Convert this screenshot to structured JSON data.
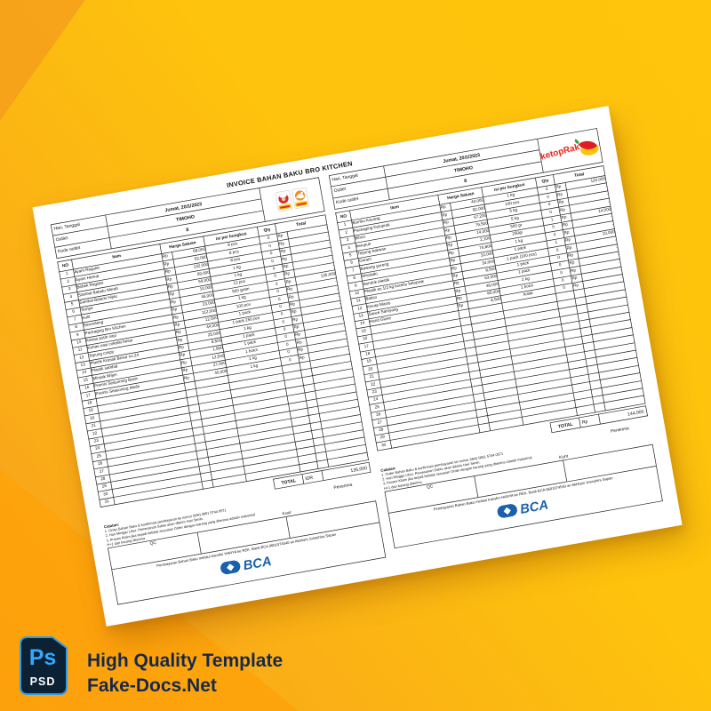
{
  "background": {
    "base_top": "#FEC30D",
    "base_bottom_left": "#F59A1E",
    "accent_wedge": "#FFA205"
  },
  "invoice": {
    "title": "INVOICE BAHAN BAKU BRO KITCHEN",
    "info_labels": [
      "Hari, Tanggal",
      "Outlet",
      "Kode outlet"
    ],
    "columns": {
      "no": "NO",
      "item": "Item",
      "price": "Harga Satuan",
      "pack": "isi per bungkus",
      "qty": "Qty",
      "total": "Total"
    },
    "currency": "Rp",
    "left": {
      "date": "Jumat, 20/1/2023",
      "outlet": "TIMOHO",
      "kode": "8",
      "row_count": 31,
      "total_label": "TOTAL",
      "total_currency": "IDR",
      "total_value": "135,000",
      "rows": [
        {
          "item": "Ayam Reguler",
          "price": "68,000",
          "pack": "8 pcs",
          "qty": "0",
          "total": "-"
        },
        {
          "item": "Ayam Hemat",
          "price": "52,000",
          "pack": "8 pcs",
          "qty": "0",
          "total": "-"
        },
        {
          "item": "Bebek Reguler",
          "price": "132,000",
          "pack": "8 pcs",
          "qty": "0",
          "total": "-"
        },
        {
          "item": "Sambal Balado Merah",
          "price": "59,000",
          "pack": "1 kg",
          "qty": "0",
          "total": "-"
        },
        {
          "item": "Sambal Balado Hijau",
          "price": "59,000",
          "pack": "1 kg",
          "qty": "0",
          "total": "-"
        },
        {
          "item": "Tempe",
          "price": "10,000",
          "pack": "12 pcs",
          "qty": "0",
          "total": "-"
        },
        {
          "item": "Kulit",
          "price": "45,000",
          "pack": "500 gram",
          "qty": "3",
          "total": "135,000"
        },
        {
          "item": "Serundeng",
          "price": "23,000",
          "pack": "1 kg",
          "qty": "0",
          "total": "-"
        },
        {
          "item": "Packaging Bro Kitchen",
          "price": "112,000",
          "pack": "100 pcs",
          "qty": "0",
          "total": "-"
        },
        {
          "item": "Kertas putih nasi",
          "price": "12,500",
          "pack": "1 pack",
          "qty": "0",
          "total": "-"
        },
        {
          "item": "Kertas nasi cokelat besar",
          "price": "44,000",
          "pack": "1 pack 250 pcs",
          "qty": "0",
          "total": "-"
        },
        {
          "item": "Tepung crispy",
          "price": "25,000",
          "pack": "1 kg",
          "qty": "0",
          "total": "-"
        },
        {
          "item": "Plastik Kresek Besar no.24",
          "price": "8,500",
          "pack": "1 pack",
          "qty": "0",
          "total": "-"
        },
        {
          "item": "Plastik sambal",
          "price": "1,800",
          "pack": "1 pack",
          "qty": "0",
          "total": "-"
        },
        {
          "item": "Minyak Wijen",
          "price": "12,500",
          "pack": "1 botol",
          "qty": "0",
          "total": "-"
        },
        {
          "item": "Premix Seasoning Basic",
          "price": "27,000",
          "pack": "1 kg",
          "qty": "0",
          "total": "-"
        },
        {
          "item": "Premix Seasoning Mede",
          "price": "40,000",
          "pack": "1 kg",
          "qty": "0",
          "total": "-"
        }
      ]
    },
    "right": {
      "date": "Jumat, 20/1/2023",
      "outlet": "TIMOHO",
      "kode": "8",
      "row_count": 30,
      "total_label": "TOTAL",
      "total_currency": "Rp",
      "total_value": "144,000",
      "rows": [
        {
          "item": "Bumbu Kacang",
          "price": "40,000",
          "pack": "1 kg",
          "qty": "3",
          "total": "120,000"
        },
        {
          "item": "Packaging Ketoprak",
          "price": "92,000",
          "pack": "100 pcs",
          "qty": "0",
          "total": "-"
        },
        {
          "item": "Bihun",
          "price": "67,200",
          "pack": "5 kg",
          "qty": "0",
          "total": "-"
        },
        {
          "item": "kerupuk",
          "price": "79,500",
          "pack": "5 kg",
          "qty": "0",
          "total": "-"
        },
        {
          "item": "Tepung bakwan",
          "price": "14,000",
          "pack": "500 gr",
          "qty": "1",
          "total": "14,000"
        },
        {
          "item": "Garam",
          "price": "2,100",
          "pack": "250gr",
          "qty": "0",
          "total": "-"
        },
        {
          "item": "Bawang goreng",
          "price": "76,800",
          "pack": "1 kg",
          "qty": "0",
          "total": "-"
        },
        {
          "item": "Shirataki",
          "price": "10,000",
          "pack": "1 pack",
          "qty": "1",
          "total": "10,000"
        },
        {
          "item": "Sendok plastik",
          "price": "34,000",
          "pack": "1 pack (100 pcs)",
          "qty": "0",
          "total": "-"
        },
        {
          "item": "Plastik es 1/2 kg bumbu ketoprak",
          "price": "8,500",
          "pack": "1 pack",
          "qty": "0",
          "total": "-"
        },
        {
          "item": "Bakso",
          "price": "63,000",
          "pack": "1 pack",
          "qty": "0",
          "total": "-"
        },
        {
          "item": "Kecap Manis",
          "price": "48,000",
          "pack": "2 kg",
          "qty": "0",
          "total": "-"
        },
        {
          "item": "Sauce Samyang",
          "price": "85,000",
          "pack": "1 botol",
          "qty": "0",
          "total": "-"
        },
        {
          "item": "Hand Glove",
          "price": "8,500",
          "pack": "kotak",
          "qty": "0",
          "total": "-"
        }
      ]
    },
    "notes": {
      "heading": "Catatan:",
      "lines": [
        "1. Order Bahan Baku & konfirmasi pembayaran ke nomor (WA) 0851 5744 0571",
        "2. Hari Minggu Libur. Pemesanan Sabtu akan dikirim Hari Senin.",
        "3. Proses Klaim jika terjadi ketidak sesuaian Order dengan barang yang diterima adalah maksimal H+1 dari barang diterima"
      ],
      "sig_qc": "QC",
      "sig_kurir": "Kurir",
      "sig_penerima": "Penerima",
      "payment": "Pembayaran Bahan Baku melalui transfer HANYA ke REK. Bank BCA 0601074540 an Akhtiani Josephira Sapan"
    },
    "brand": {
      "ketoprak_text": "ketopRak",
      "ketoprak_red": "#E8251D",
      "bca_text": "BCA",
      "bca_blue": "#1961AC"
    }
  },
  "watermark": {
    "app_label": "Ps",
    "file_label": "PSD",
    "line1": "High Quality Template",
    "line2": "Fake-Docs.Net",
    "badge_bg": "#0C2234",
    "badge_accent": "#31A8FF",
    "text_color": "#16294B"
  }
}
